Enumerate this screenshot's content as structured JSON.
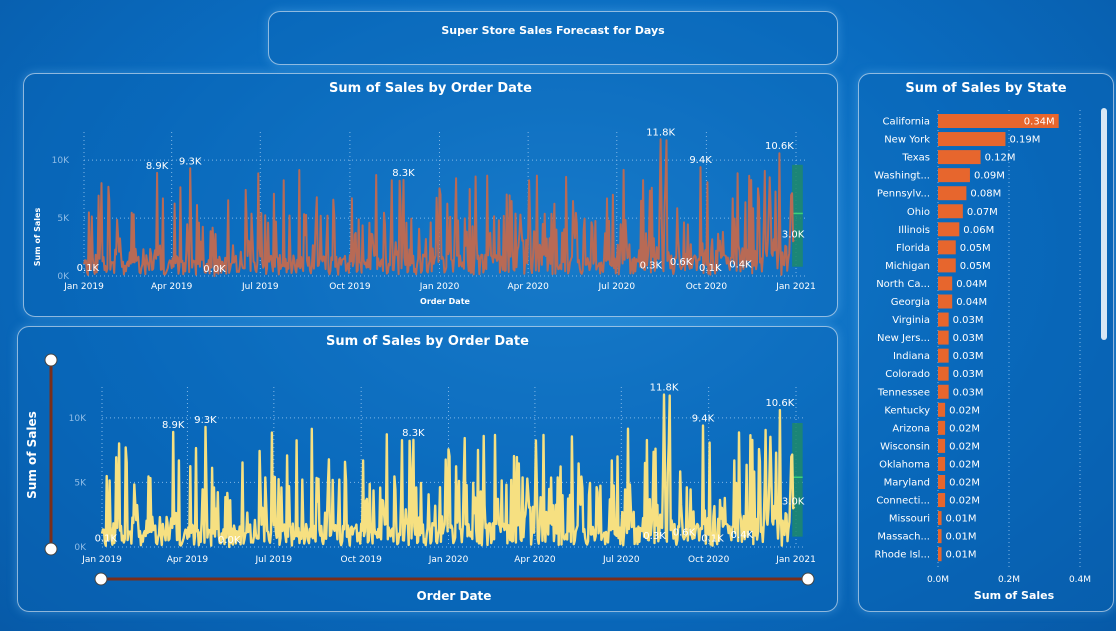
{
  "header": {
    "title": "Super Store Sales Forecast for  Days"
  },
  "colors": {
    "line_top": "#b86a55",
    "line_bottom": "#f6e081",
    "forecast": "#1f8a6a",
    "bar": "#e7662d",
    "gridline": "#7fb6e6"
  },
  "top_chart": {
    "title": "Sum of Sales by Order Date",
    "xlabel": "Order Date",
    "ylabel": "Sum of Sales"
  },
  "bottom_chart": {
    "title": "Sum of Sales by Order Date",
    "xlabel": "Order Date",
    "ylabel": "Sum of Sales"
  },
  "state_chart": {
    "title": "Sum of Sales by State",
    "xlabel": "Sum of Sales"
  },
  "chart_data": [
    {
      "type": "line",
      "title": "Sum of Sales by Order Date",
      "xlabel": "Order Date",
      "ylabel": "Sum of Sales",
      "y_ticks": [
        "0K",
        "5K",
        "10K"
      ],
      "ylim": [
        0,
        12000
      ],
      "x_ticks": [
        "Jan 2019",
        "Apr 2019",
        "Jul 2019",
        "Oct 2019",
        "Jan 2020",
        "Apr 2020",
        "Jul 2020",
        "Oct 2020",
        "Jan 2021"
      ],
      "grid": true,
      "annotations": [
        {
          "label": "0.1K",
          "x": "2019-01-05",
          "y": 100
        },
        {
          "label": "8.9K",
          "x": "2019-03-17",
          "y": 8900
        },
        {
          "label": "9.3K",
          "x": "2019-04-20",
          "y": 9300
        },
        {
          "label": "0.0K",
          "x": "2019-05-15",
          "y": 0
        },
        {
          "label": "8.3K",
          "x": "2019-11-25",
          "y": 8300
        },
        {
          "label": "11.8K",
          "x": "2020-08-15",
          "y": 11800
        },
        {
          "label": "0.3K",
          "x": "2020-08-05",
          "y": 300
        },
        {
          "label": "0.6K",
          "x": "2020-09-05",
          "y": 600
        },
        {
          "label": "9.4K",
          "x": "2020-09-25",
          "y": 9400
        },
        {
          "label": "0.1K",
          "x": "2020-10-05",
          "y": 100
        },
        {
          "label": "0.4K",
          "x": "2020-11-05",
          "y": 400
        },
        {
          "label": "10.6K",
          "x": "2020-12-15",
          "y": 10600
        },
        {
          "label": "3.0K",
          "x": "2020-12-29",
          "y": 3000
        }
      ],
      "forecast": {
        "x_start": "2020-12-28",
        "x_end": "2021-01-08",
        "lower": 800,
        "upper": 9600,
        "value": 5400
      }
    },
    {
      "type": "bar",
      "title": "Sum of Sales by State",
      "xlabel": "Sum of Sales",
      "x_ticks": [
        "0.0M",
        "0.2M",
        "0.4M"
      ],
      "xlim": [
        0,
        0.4
      ],
      "categories": [
        "California",
        "New York",
        "Texas",
        "Washingt...",
        "Pennsylv...",
        "Ohio",
        "Illinois",
        "Florida",
        "Michigan",
        "North Ca...",
        "Georgia",
        "Virginia",
        "New Jers...",
        "Indiana",
        "Colorado",
        "Tennessee",
        "Kentucky",
        "Arizona",
        "Wisconsin",
        "Oklahoma",
        "Maryland",
        "Connecti...",
        "Missouri",
        "Massach...",
        "Rhode Isl..."
      ],
      "values": [
        0.34,
        0.19,
        0.12,
        0.09,
        0.08,
        0.07,
        0.06,
        0.05,
        0.05,
        0.04,
        0.04,
        0.03,
        0.03,
        0.03,
        0.03,
        0.03,
        0.02,
        0.02,
        0.02,
        0.02,
        0.02,
        0.02,
        0.01,
        0.01,
        0.01
      ],
      "labels": [
        "0.34M",
        "0.19M",
        "0.12M",
        "0.09M",
        "0.08M",
        "0.07M",
        "0.06M",
        "0.05M",
        "0.05M",
        "0.04M",
        "0.04M",
        "0.03M",
        "0.03M",
        "0.03M",
        "0.03M",
        "0.03M",
        "0.02M",
        "0.02M",
        "0.02M",
        "0.02M",
        "0.02M",
        "0.02M",
        "0.01M",
        "0.01M",
        "0.01M"
      ]
    }
  ]
}
